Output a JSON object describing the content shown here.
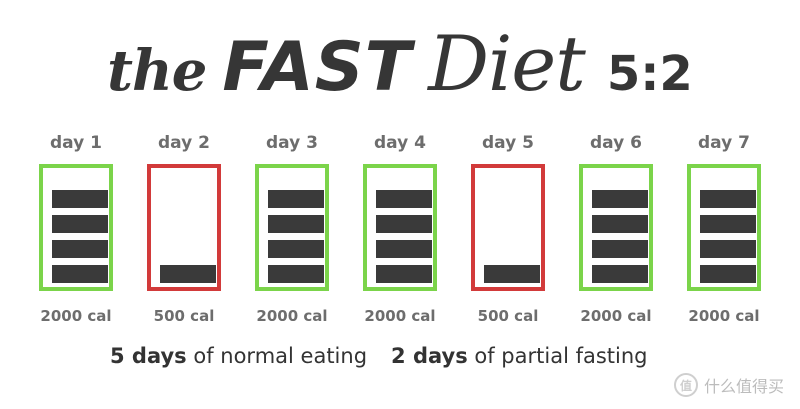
{
  "title": {
    "the": "the",
    "fast": "FAST",
    "diet": "Diet",
    "ratio": "5:2"
  },
  "colors": {
    "normal_border": "#7bd44a",
    "fast_border": "#d23a3a",
    "bar": "#3a3a3a",
    "text_dark": "#333333",
    "text_muted": "#6d6d6d"
  },
  "days": [
    {
      "label": "day 1",
      "calories": "2000 cal",
      "type": "normal",
      "bars_filled": 4
    },
    {
      "label": "day 2",
      "calories": "500 cal",
      "type": "fast",
      "bars_filled": 1
    },
    {
      "label": "day 3",
      "calories": "2000 cal",
      "type": "normal",
      "bars_filled": 4
    },
    {
      "label": "day 4",
      "calories": "2000 cal",
      "type": "normal",
      "bars_filled": 4
    },
    {
      "label": "day 5",
      "calories": "500 cal",
      "type": "fast",
      "bars_filled": 1
    },
    {
      "label": "day 6",
      "calories": "2000 cal",
      "type": "normal",
      "bars_filled": 4
    },
    {
      "label": "day 7",
      "calories": "2000 cal",
      "type": "normal",
      "bars_filled": 4
    }
  ],
  "summary": {
    "normal_count": "5 days",
    "normal_text": "of normal eating",
    "fast_count": "2 days",
    "fast_text": "of partial fasting"
  },
  "watermark": {
    "logo_text": "值",
    "text": "什么值得买"
  }
}
